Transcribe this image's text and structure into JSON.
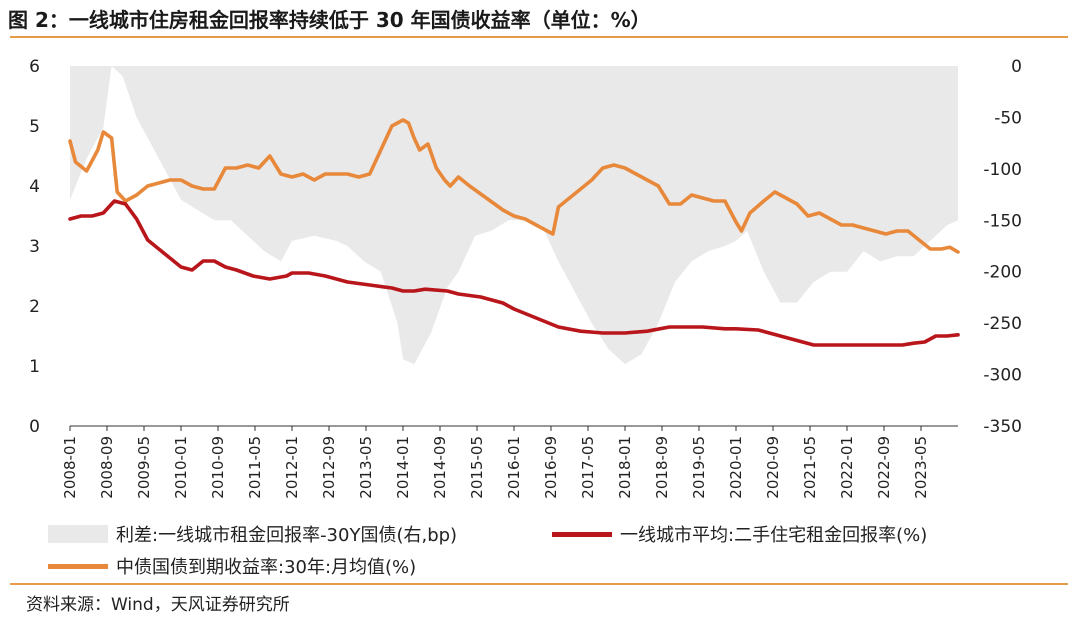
{
  "title": "图 2：一线城市住房租金回报率持续低于 30 年国债收益率（单位：%）",
  "source": "资料来源：Wind，天风证券研究所",
  "chart_data": {
    "type": "line",
    "left_ylim": [
      0,
      6
    ],
    "left_ticks": [
      "0",
      "1",
      "2",
      "3",
      "4",
      "5",
      "6"
    ],
    "right_ylim": [
      -350,
      0
    ],
    "right_ticks": [
      "0",
      "-50",
      "-100",
      "-150",
      "-200",
      "-250",
      "-300",
      "-350"
    ],
    "x_range": [
      "2008-01",
      "2024-01"
    ],
    "x_ticks": [
      "2008-01",
      "2008-09",
      "2009-05",
      "2010-01",
      "2010-09",
      "2011-05",
      "2012-01",
      "2012-09",
      "2013-05",
      "2014-01",
      "2014-09",
      "2015-05",
      "2016-01",
      "2016-09",
      "2017-05",
      "2018-01",
      "2018-09",
      "2019-05",
      "2020-01",
      "2020-09",
      "2021-05",
      "2022-01",
      "2022-09",
      "2023-05"
    ],
    "legend": [
      {
        "label": "利差:一线城市租金回报率-30Y国债(右,bp)",
        "kind": "area",
        "color": "#e9e9e9"
      },
      {
        "label": "一线城市平均:二手住宅租金回报率(%)",
        "kind": "line",
        "color": "#b8161b"
      },
      {
        "label": "中债国债到期收益率:30年:月均值(%)",
        "kind": "line",
        "color": "#e8883a"
      }
    ],
    "series": [
      {
        "name": "中债国债到期收益率:30年:月均值(%)",
        "axis": "left",
        "color": "#e8883a",
        "x": [
          2008.0,
          2008.1,
          2008.3,
          2008.5,
          2008.6,
          2008.75,
          2008.85,
          2009.0,
          2009.2,
          2009.4,
          2009.6,
          2009.8,
          2010.0,
          2010.2,
          2010.4,
          2010.6,
          2010.8,
          2011.0,
          2011.2,
          2011.4,
          2011.6,
          2011.8,
          2012.0,
          2012.2,
          2012.4,
          2012.6,
          2012.8,
          2013.0,
          2013.2,
          2013.4,
          2013.6,
          2013.8,
          2014.0,
          2014.1,
          2014.2,
          2014.3,
          2014.45,
          2014.6,
          2014.75,
          2014.85,
          2015.0,
          2015.2,
          2015.5,
          2015.8,
          2016.0,
          2016.2,
          2016.5,
          2016.7,
          2016.8,
          2017.0,
          2017.2,
          2017.4,
          2017.6,
          2017.8,
          2018.0,
          2018.2,
          2018.4,
          2018.6,
          2018.8,
          2019.0,
          2019.2,
          2019.4,
          2019.6,
          2019.8,
          2020.0,
          2020.1,
          2020.25,
          2020.5,
          2020.7,
          2020.9,
          2021.1,
          2021.3,
          2021.5,
          2021.7,
          2021.9,
          2022.1,
          2022.3,
          2022.5,
          2022.7,
          2022.9,
          2023.1,
          2023.3,
          2023.5,
          2023.7,
          2023.85,
          2024.0
        ],
        "y": [
          4.75,
          4.4,
          4.25,
          4.6,
          4.9,
          4.8,
          3.9,
          3.75,
          3.85,
          4.0,
          4.05,
          4.1,
          4.1,
          4.0,
          3.95,
          3.95,
          4.3,
          4.3,
          4.35,
          4.3,
          4.5,
          4.2,
          4.15,
          4.2,
          4.1,
          4.2,
          4.2,
          4.2,
          4.15,
          4.2,
          4.6,
          5.0,
          5.1,
          5.05,
          4.8,
          4.6,
          4.7,
          4.3,
          4.1,
          4.0,
          4.15,
          4.0,
          3.8,
          3.6,
          3.5,
          3.45,
          3.3,
          3.2,
          3.65,
          3.8,
          3.95,
          4.1,
          4.3,
          4.35,
          4.3,
          4.2,
          4.1,
          4.0,
          3.7,
          3.7,
          3.85,
          3.8,
          3.75,
          3.75,
          3.4,
          3.25,
          3.55,
          3.75,
          3.9,
          3.8,
          3.7,
          3.5,
          3.55,
          3.45,
          3.35,
          3.35,
          3.3,
          3.25,
          3.2,
          3.25,
          3.25,
          3.1,
          2.95,
          2.95,
          2.98,
          2.9
        ]
      },
      {
        "name": "一线城市平均:二手住宅租金回报率(%)",
        "axis": "left",
        "color": "#b8161b",
        "x": [
          2008.0,
          2008.2,
          2008.4,
          2008.6,
          2008.8,
          2009.0,
          2009.2,
          2009.4,
          2009.6,
          2009.8,
          2010.0,
          2010.2,
          2010.4,
          2010.6,
          2010.8,
          2011.0,
          2011.3,
          2011.6,
          2011.9,
          2012.0,
          2012.3,
          2012.6,
          2013.0,
          2013.4,
          2013.8,
          2014.0,
          2014.2,
          2014.4,
          2014.8,
          2015.0,
          2015.4,
          2015.8,
          2016.0,
          2016.4,
          2016.8,
          2017.2,
          2017.6,
          2018.0,
          2018.4,
          2018.8,
          2019.0,
          2019.4,
          2019.8,
          2020.0,
          2020.4,
          2020.8,
          2021.0,
          2021.4,
          2021.8,
          2022.0,
          2022.4,
          2022.8,
          2023.0,
          2023.2,
          2023.4,
          2023.6,
          2023.8,
          2024.0
        ],
        "y": [
          3.45,
          3.5,
          3.5,
          3.55,
          3.75,
          3.7,
          3.45,
          3.1,
          2.95,
          2.8,
          2.65,
          2.6,
          2.75,
          2.75,
          2.65,
          2.6,
          2.5,
          2.45,
          2.5,
          2.55,
          2.55,
          2.5,
          2.4,
          2.35,
          2.3,
          2.25,
          2.25,
          2.28,
          2.25,
          2.2,
          2.15,
          2.05,
          1.95,
          1.8,
          1.65,
          1.58,
          1.55,
          1.55,
          1.58,
          1.65,
          1.65,
          1.65,
          1.62,
          1.62,
          1.6,
          1.5,
          1.45,
          1.35,
          1.35,
          1.35,
          1.35,
          1.35,
          1.35,
          1.38,
          1.4,
          1.5,
          1.5,
          1.52
        ]
      },
      {
        "name": "利差:一线城市租金回报率-30Y国债(右,bp)",
        "axis": "right",
        "color": "#e9e9e9",
        "x": [
          2008.0,
          2008.3,
          2008.6,
          2008.75,
          2008.95,
          2009.2,
          2009.5,
          2009.8,
          2010.0,
          2010.3,
          2010.6,
          2010.9,
          2011.2,
          2011.5,
          2011.8,
          2012.0,
          2012.4,
          2012.8,
          2013.0,
          2013.3,
          2013.6,
          2013.9,
          2014.0,
          2014.2,
          2014.5,
          2014.8,
          2015.0,
          2015.3,
          2015.6,
          2015.9,
          2016.2,
          2016.5,
          2016.8,
          2017.1,
          2017.4,
          2017.7,
          2018.0,
          2018.3,
          2018.6,
          2018.9,
          2019.2,
          2019.5,
          2019.8,
          2020.0,
          2020.2,
          2020.5,
          2020.8,
          2021.1,
          2021.4,
          2021.7,
          2022.0,
          2022.3,
          2022.6,
          2022.9,
          2023.2,
          2023.5,
          2023.8,
          2024.0
        ],
        "y": [
          -130,
          -90,
          -60,
          0,
          -10,
          -50,
          -80,
          -110,
          -130,
          -140,
          -150,
          -150,
          -165,
          -180,
          -190,
          -170,
          -165,
          -170,
          -175,
          -190,
          -200,
          -250,
          -285,
          -290,
          -260,
          -215,
          -200,
          -165,
          -160,
          -150,
          -150,
          -155,
          -190,
          -220,
          -250,
          -275,
          -290,
          -280,
          -250,
          -210,
          -190,
          -180,
          -175,
          -170,
          -160,
          -200,
          -230,
          -230,
          -210,
          -200,
          -200,
          -180,
          -190,
          -185,
          -185,
          -170,
          -155,
          -150
        ]
      }
    ]
  }
}
